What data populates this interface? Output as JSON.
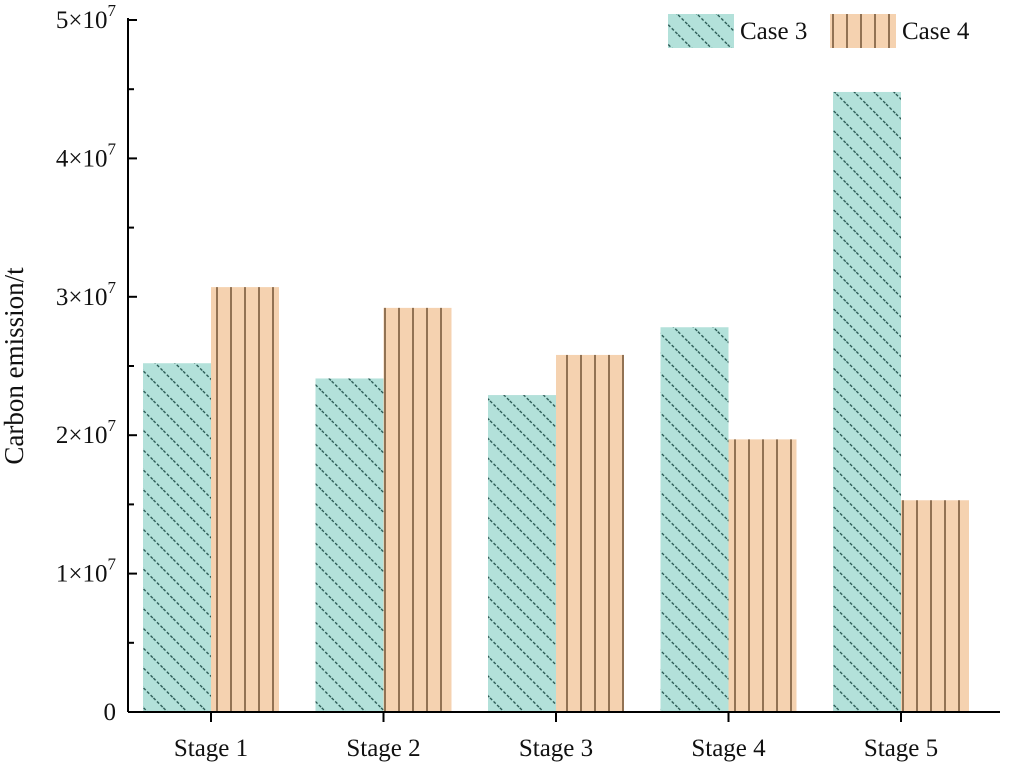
{
  "chart_data": {
    "type": "bar",
    "ylabel": "Carbon emission/t",
    "xlabel": "",
    "categories": [
      "Stage 1",
      "Stage 2",
      "Stage 3",
      "Stage 4",
      "Stage 5"
    ],
    "ylim": [
      0,
      50000000
    ],
    "yticks": [
      0,
      10000000,
      20000000,
      30000000,
      40000000,
      50000000
    ],
    "ytick_labels": [
      {
        "mantissa": "0",
        "exponent": ""
      },
      {
        "mantissa": "1×10",
        "exponent": "7"
      },
      {
        "mantissa": "2×10",
        "exponent": "7"
      },
      {
        "mantissa": "3×10",
        "exponent": "7"
      },
      {
        "mantissa": "4×10",
        "exponent": "7"
      },
      {
        "mantissa": "5×10",
        "exponent": "7"
      }
    ],
    "series": [
      {
        "name": "Case 3",
        "color": "#b3e1da",
        "pattern": "diagonal-hatch",
        "values": [
          25200000,
          24100000,
          22900000,
          27800000,
          44800000
        ]
      },
      {
        "name": "Case 4",
        "color": "#f5d2b0",
        "pattern": "vertical-lines",
        "values": [
          30700000,
          29200000,
          25800000,
          19700000,
          15300000
        ]
      }
    ],
    "legend_position": "top-right",
    "grid": false
  }
}
